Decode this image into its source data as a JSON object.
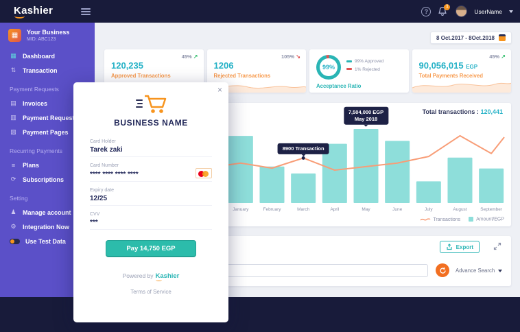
{
  "header": {
    "logo": "Kashier",
    "help_glyph": "?",
    "notification_count": "1",
    "user_name": "UserName"
  },
  "sidebar": {
    "business_title": "Your Business",
    "business_mid": "MID: ABC123",
    "sections": {
      "payment_requests": "Payment Requests",
      "recurring_payments": "Recurring Payments",
      "setting": "Setting"
    },
    "items": {
      "dashboard": "Dashboard",
      "transaction": "Transaction",
      "invoices": "Invoices",
      "payment_request": "Payment Request",
      "payment_pages": "Payment Pages",
      "plans": "Plans",
      "subscriptions": "Subscriptions",
      "manage_account": "Manage account",
      "integration_now": "Integration Now",
      "use_test_data": "Use Test Data"
    }
  },
  "main": {
    "date_range": "8 Oct.2017 - 8Oct.2018",
    "stats": [
      {
        "change": "45%",
        "value": "120,235",
        "label": "Approved Transactions"
      },
      {
        "change": "105%",
        "value": "1206",
        "label": "Rejected Transactions"
      },
      {
        "percent": "99%",
        "legend_approved": "99% Approved",
        "legend_rejected": "1% Rejected",
        "label": "Acceptance Ratio"
      },
      {
        "change": "45%",
        "value": "90,056,015",
        "currency": "EGP",
        "label": "Total Payments Received"
      }
    ],
    "toolbar": {
      "export_label": "Export",
      "advance_search_label": "Advance Search"
    }
  },
  "chart_data": {
    "type": "bar+line",
    "total_label": "Total transactions :",
    "total_value": "120,441",
    "categories": [
      "January",
      "February",
      "March",
      "April",
      "May",
      "June",
      "July",
      "August",
      "September"
    ],
    "series": [
      {
        "name": "Amount/EGP",
        "type": "bar",
        "color": "#8ededa",
        "values": [
          6800000,
          3700000,
          3000000,
          6000000,
          7504000,
          6300000,
          2200000,
          4600000,
          3500000
        ]
      },
      {
        "name": "Transactions",
        "type": "line",
        "color": "#f89d77",
        "values": [
          7900,
          6900,
          8900,
          6500,
          7200,
          7900,
          9200,
          13300,
          9800
        ]
      }
    ],
    "ylim_amount": [
      0,
      8200000
    ],
    "ylim_transactions": [
      0,
      16000
    ],
    "tooltip_amount": {
      "line1": "7,504,000 EGP",
      "line2": "May 2018",
      "month_index": 4
    },
    "tooltip_transactions": {
      "text": "8900 Transaction",
      "month_index": 2
    },
    "legend": [
      "Transactions",
      "Amount/EGP"
    ]
  },
  "modal": {
    "close_glyph": "×",
    "business_name": "BUSINESS NAME",
    "card_holder_label": "Card Holder",
    "card_holder_value": "Tarek zaki",
    "card_number_label": "Card Number",
    "card_number_value": "**** **** **** ****",
    "expiry_label": "Expiry date",
    "expiry_value": "12/25",
    "cvv_label": "CVV",
    "cvv_value": "***",
    "pay_label": "Pay 14,750 EGP",
    "powered_by": "Powered by",
    "brand": "Kashier",
    "terms": "Terms of Service"
  }
}
